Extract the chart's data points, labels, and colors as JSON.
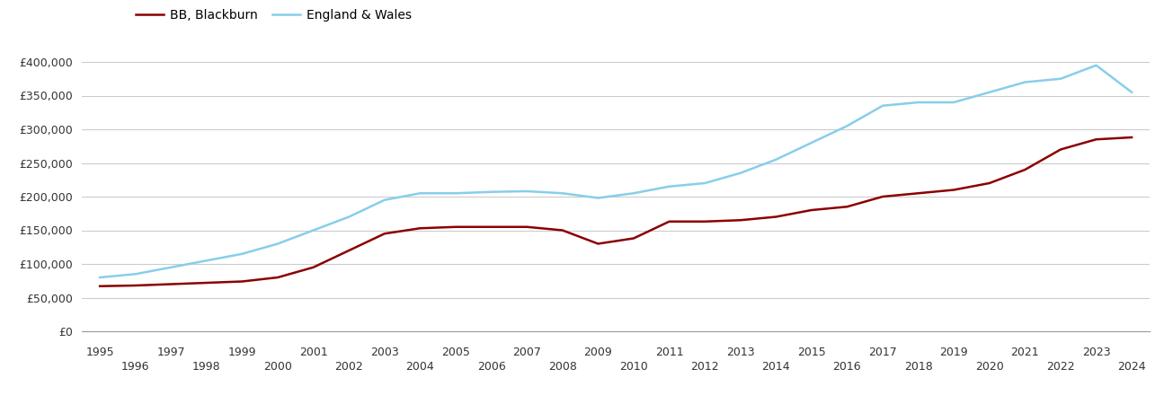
{
  "years": [
    1995,
    1996,
    1997,
    1998,
    1999,
    2000,
    2001,
    2002,
    2003,
    2004,
    2005,
    2006,
    2007,
    2008,
    2009,
    2010,
    2011,
    2012,
    2013,
    2014,
    2015,
    2016,
    2017,
    2018,
    2019,
    2020,
    2021,
    2022,
    2023,
    2024
  ],
  "blackburn": [
    67000,
    68000,
    70000,
    72000,
    74000,
    80000,
    95000,
    120000,
    145000,
    153000,
    155000,
    155000,
    155000,
    150000,
    130000,
    138000,
    163000,
    163000,
    165000,
    170000,
    180000,
    185000,
    200000,
    205000,
    210000,
    220000,
    240000,
    270000,
    285000,
    288000
  ],
  "england_wales": [
    80000,
    85000,
    95000,
    105000,
    115000,
    130000,
    150000,
    170000,
    195000,
    205000,
    205000,
    207000,
    208000,
    205000,
    198000,
    205000,
    215000,
    220000,
    235000,
    255000,
    280000,
    305000,
    335000,
    340000,
    340000,
    355000,
    370000,
    375000,
    395000,
    355000
  ],
  "blackburn_color": "#8B0000",
  "england_wales_color": "#87CEEB",
  "background_color": "#ffffff",
  "grid_color": "#cccccc",
  "label_blackburn": "BB, Blackburn",
  "label_england_wales": "England & Wales",
  "ylim": [
    0,
    420000
  ],
  "yticks": [
    0,
    50000,
    100000,
    150000,
    200000,
    250000,
    300000,
    350000,
    400000
  ],
  "xlim": [
    1994.5,
    2024.5
  ],
  "xticks_top": [
    1995,
    1997,
    1999,
    2001,
    2003,
    2005,
    2007,
    2009,
    2011,
    2013,
    2015,
    2017,
    2019,
    2021,
    2023
  ],
  "xticks_bottom": [
    1996,
    1998,
    2000,
    2002,
    2004,
    2006,
    2008,
    2010,
    2012,
    2014,
    2016,
    2018,
    2020,
    2022,
    2024
  ],
  "line_width": 1.8,
  "tick_fontsize": 9,
  "tick_color": "#333333",
  "spine_color": "#999999"
}
